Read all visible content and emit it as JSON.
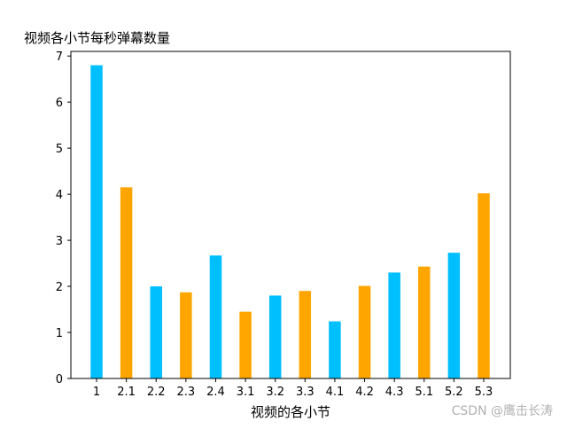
{
  "chart_data": {
    "type": "bar",
    "title": "视频各小节每秒弹幕数量",
    "xlabel": "视频的各小节",
    "ylabel": "",
    "categories": [
      "1",
      "2.1",
      "2.2",
      "2.3",
      "2.4",
      "3.1",
      "3.2",
      "3.3",
      "4.1",
      "4.2",
      "4.3",
      "5.1",
      "5.2",
      "5.3"
    ],
    "values": [
      6.8,
      4.15,
      2.0,
      1.87,
      2.67,
      1.45,
      1.8,
      1.9,
      1.24,
      2.01,
      2.3,
      2.43,
      2.73,
      4.02
    ],
    "bar_colors": [
      "#00bfff",
      "#ffa500",
      "#00bfff",
      "#ffa500",
      "#00bfff",
      "#ffa500",
      "#00bfff",
      "#ffa500",
      "#00bfff",
      "#ffa500",
      "#00bfff",
      "#ffa500",
      "#00bfff",
      "#ffa500"
    ],
    "ylim": [
      0,
      7.1
    ],
    "yticks": [
      0,
      1,
      2,
      3,
      4,
      5,
      6,
      7
    ],
    "grid": false,
    "legend": "none"
  },
  "watermark": "CSDN @鹰击长涛"
}
